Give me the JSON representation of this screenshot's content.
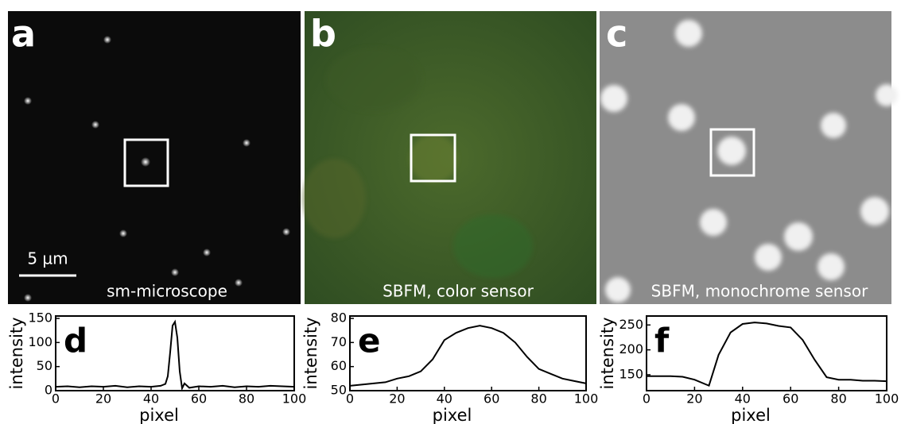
{
  "panels": [
    {
      "label": "a",
      "caption": "sm-microscope",
      "scale_bar": "5 µm"
    },
    {
      "label": "b",
      "caption": "SBFM, color sensor"
    },
    {
      "label": "c",
      "caption": "SBFM, monochrome sensor"
    }
  ],
  "chart_data": [
    {
      "type": "line",
      "label": "d",
      "xlabel": "pixel",
      "ylabel": "intensity",
      "color": "#000000",
      "x": [
        0,
        5,
        10,
        15,
        20,
        25,
        30,
        35,
        40,
        44,
        46,
        47,
        48,
        49,
        50,
        51,
        52,
        53,
        54,
        56,
        60,
        65,
        70,
        75,
        80,
        85,
        90,
        95,
        100
      ],
      "values": [
        8,
        9,
        7,
        9,
        8,
        10,
        7,
        9,
        8,
        10,
        14,
        30,
        80,
        135,
        143,
        110,
        40,
        5,
        15,
        6,
        9,
        8,
        10,
        7,
        9,
        8,
        10,
        9,
        8
      ],
      "xlim": [
        0,
        100
      ],
      "xticks": [
        0,
        20,
        40,
        60,
        80,
        100
      ],
      "ylim": [
        0,
        155
      ],
      "yticks": [
        0,
        50,
        100,
        150
      ]
    },
    {
      "type": "line",
      "label": "e",
      "xlabel": "pixel",
      "ylabel": "intensity",
      "color": "#000000",
      "x": [
        0,
        5,
        10,
        15,
        20,
        25,
        30,
        35,
        40,
        45,
        50,
        55,
        60,
        65,
        70,
        75,
        80,
        85,
        90,
        95,
        100
      ],
      "values": [
        52,
        52.5,
        53,
        53.5,
        55,
        56,
        58,
        63,
        71,
        74,
        76,
        77,
        76,
        74,
        70,
        64,
        59,
        57,
        55,
        54,
        53
      ],
      "xlim": [
        0,
        100
      ],
      "xticks": [
        0,
        20,
        40,
        60,
        80,
        100
      ],
      "ylim": [
        50,
        81
      ],
      "yticks": [
        50,
        60,
        70,
        80
      ]
    },
    {
      "type": "line",
      "label": "f",
      "xlabel": "pixel",
      "ylabel": "intensity",
      "color": "#000000",
      "x": [
        0,
        5,
        10,
        15,
        20,
        25,
        26,
        30,
        35,
        40,
        45,
        50,
        55,
        60,
        65,
        70,
        75,
        80,
        85,
        90,
        95,
        100
      ],
      "values": [
        147,
        147,
        147,
        146,
        140,
        130,
        128,
        190,
        235,
        252,
        255,
        253,
        248,
        245,
        220,
        180,
        145,
        140,
        140,
        138,
        138,
        137
      ],
      "xlim": [
        0,
        100
      ],
      "xticks": [
        0,
        20,
        40,
        60,
        80,
        100
      ],
      "ylim": [
        118,
        268
      ],
      "yticks": [
        150,
        200,
        250
      ]
    }
  ]
}
